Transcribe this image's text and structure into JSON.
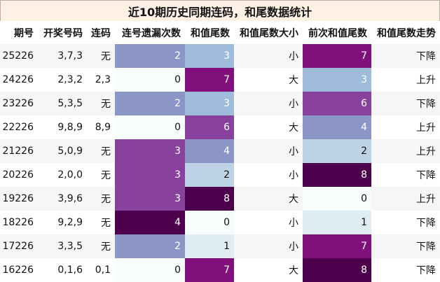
{
  "title": "近10期历史同期连码，和尾数据统计",
  "headers": [
    "期号",
    "开奖号码",
    "连码",
    "连号遗漏次数",
    "和值尾数",
    "和值尾数大小",
    "前次和值尾数",
    "和值尾数走势"
  ],
  "rows": [
    {
      "issue": "25226",
      "numbers": "3,7,3",
      "lianma": "无",
      "lianhao_miss": "2",
      "sum_tail": "3",
      "size": "小",
      "prev_tail": "7",
      "trend": "下降"
    },
    {
      "issue": "24226",
      "numbers": "2,3,2",
      "lianma": "2,3",
      "lianhao_miss": "0",
      "sum_tail": "7",
      "size": "大",
      "prev_tail": "3",
      "trend": "上升"
    },
    {
      "issue": "23226",
      "numbers": "5,3,5",
      "lianma": "无",
      "lianhao_miss": "2",
      "sum_tail": "3",
      "size": "小",
      "prev_tail": "6",
      "trend": "下降"
    },
    {
      "issue": "22226",
      "numbers": "9,8,9",
      "lianma": "8,9",
      "lianhao_miss": "0",
      "sum_tail": "6",
      "size": "大",
      "prev_tail": "4",
      "trend": "上升"
    },
    {
      "issue": "21226",
      "numbers": "5,0,9",
      "lianma": "无",
      "lianhao_miss": "3",
      "sum_tail": "4",
      "size": "小",
      "prev_tail": "2",
      "trend": "上升"
    },
    {
      "issue": "20226",
      "numbers": "2,0,0",
      "lianma": "无",
      "lianhao_miss": "3",
      "sum_tail": "2",
      "size": "小",
      "prev_tail": "8",
      "trend": "下降"
    },
    {
      "issue": "19226",
      "numbers": "3,9,6",
      "lianma": "无",
      "lianhao_miss": "3",
      "sum_tail": "8",
      "size": "大",
      "prev_tail": "0",
      "trend": "上升"
    },
    {
      "issue": "18226",
      "numbers": "9,2,9",
      "lianma": "无",
      "lianhao_miss": "4",
      "sum_tail": "0",
      "size": "小",
      "prev_tail": "1",
      "trend": "下降"
    },
    {
      "issue": "17226",
      "numbers": "3,3,5",
      "lianma": "无",
      "lianhao_miss": "2",
      "sum_tail": "1",
      "size": "小",
      "prev_tail": "7",
      "trend": "下降"
    },
    {
      "issue": "16226",
      "numbers": "0,1,6",
      "lianma": "0,1",
      "lianhao_miss": "0",
      "sum_tail": "7",
      "size": "大",
      "prev_tail": "8",
      "trend": "下降"
    }
  ],
  "colors": {
    "title_bg": "#fdf1e4",
    "miss_scale": {
      "0": "#f7fcfd",
      "2": "#8c96c6",
      "3": "#88419d",
      "4": "#4d004b"
    },
    "tail_scale": {
      "0": "#f7fcfd",
      "1": "#e0ecf4",
      "2": "#bfd3e6",
      "3": "#9ebcda",
      "4": "#8c96c6",
      "6": "#88419d",
      "7": "#810f7c",
      "8": "#4d004b"
    }
  }
}
